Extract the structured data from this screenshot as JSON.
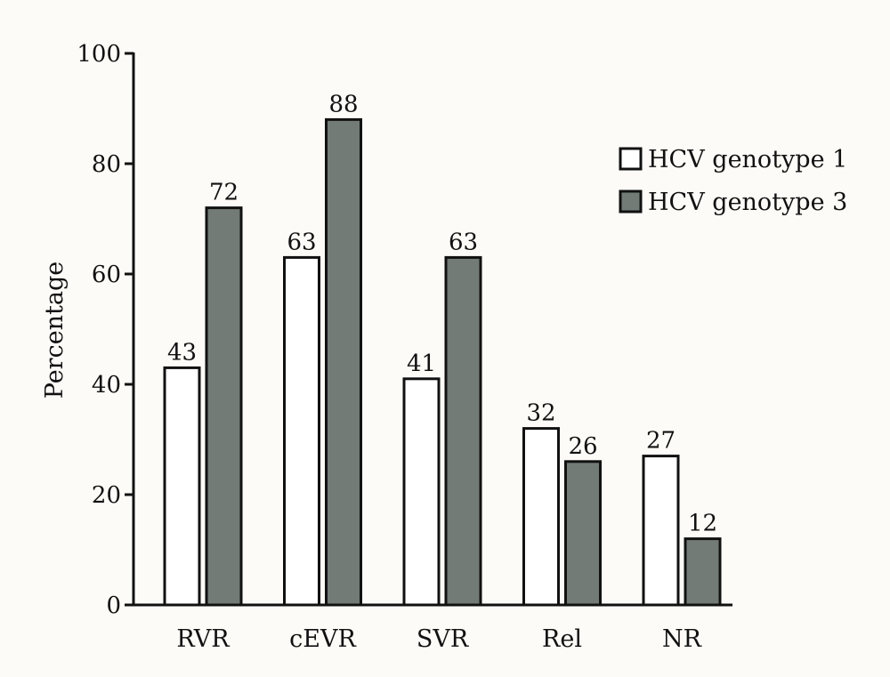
{
  "chart_data": {
    "type": "bar",
    "title": "",
    "xlabel": "",
    "ylabel": "Percentage",
    "ylim": [
      0,
      100
    ],
    "yticks": [
      0,
      20,
      40,
      60,
      80,
      100
    ],
    "categories": [
      "RVR",
      "cEVR",
      "SVR",
      "Rel",
      "NR"
    ],
    "series": [
      {
        "name": "HCV genotype 1",
        "values": [
          43,
          63,
          41,
          32,
          27
        ],
        "color": "#ffffff"
      },
      {
        "name": "HCV genotype 3",
        "values": [
          72,
          88,
          63,
          26,
          12
        ],
        "color": "#737b76"
      }
    ],
    "data_labels": true,
    "grid": false,
    "legend": "top-right",
    "stroke_color": "#111111"
  }
}
